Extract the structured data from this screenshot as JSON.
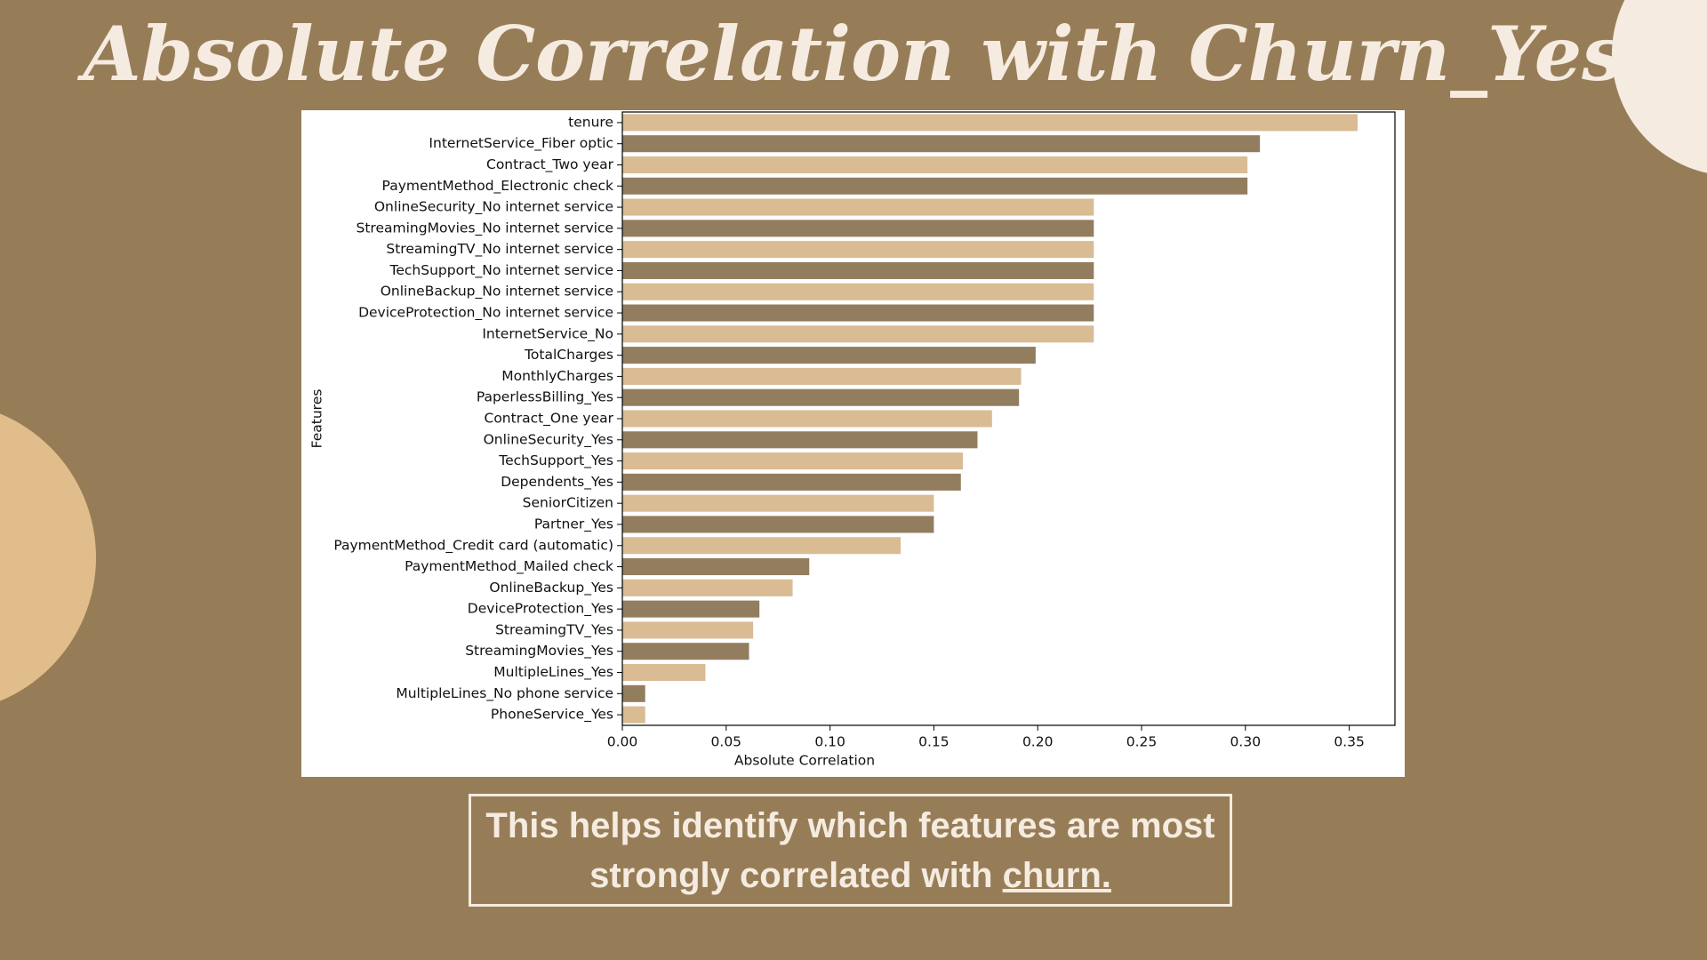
{
  "chart_data": {
    "type": "barh",
    "title": "Absolute Correlation with Churn_Yes",
    "xlabel": "Absolute Correlation",
    "ylabel": "Features",
    "categories": [
      "tenure",
      "InternetService_Fiber optic",
      "Contract_Two year",
      "PaymentMethod_Electronic check",
      "OnlineSecurity_No internet service",
      "StreamingMovies_No internet service",
      "StreamingTV_No internet service",
      "TechSupport_No internet service",
      "OnlineBackup_No internet service",
      "DeviceProtection_No internet service",
      "InternetService_No",
      "TotalCharges",
      "MonthlyCharges",
      "PaperlessBilling_Yes",
      "Contract_One year",
      "OnlineSecurity_Yes",
      "TechSupport_Yes",
      "Dependents_Yes",
      "SeniorCitizen",
      "Partner_Yes",
      "PaymentMethod_Credit card (automatic)",
      "PaymentMethod_Mailed check",
      "OnlineBackup_Yes",
      "DeviceProtection_Yes",
      "StreamingTV_Yes",
      "StreamingMovies_Yes",
      "MultipleLines_Yes",
      "MultipleLines_No phone service",
      "PhoneService_Yes"
    ],
    "values": [
      0.354,
      0.307,
      0.301,
      0.301,
      0.227,
      0.227,
      0.227,
      0.227,
      0.227,
      0.227,
      0.227,
      0.199,
      0.192,
      0.191,
      0.178,
      0.171,
      0.164,
      0.163,
      0.15,
      0.15,
      0.134,
      0.09,
      0.082,
      0.066,
      0.063,
      0.061,
      0.04,
      0.011,
      0.011
    ],
    "palette": [
      "#d9bb94",
      "#937d5f"
    ],
    "xlim": [
      0,
      0.372
    ],
    "xticks": [
      {
        "value": 0,
        "label": "0.00"
      },
      0.05,
      {
        "value": 0.1,
        "label": "0.10"
      },
      0.15,
      {
        "value": 0.2,
        "label": "0.20"
      },
      0.25,
      {
        "value": 0.3,
        "label": "0.30"
      },
      0.35
    ]
  },
  "caption": {
    "text": "This helps identify which features are most strongly correlated with",
    "highlight": "churn."
  }
}
